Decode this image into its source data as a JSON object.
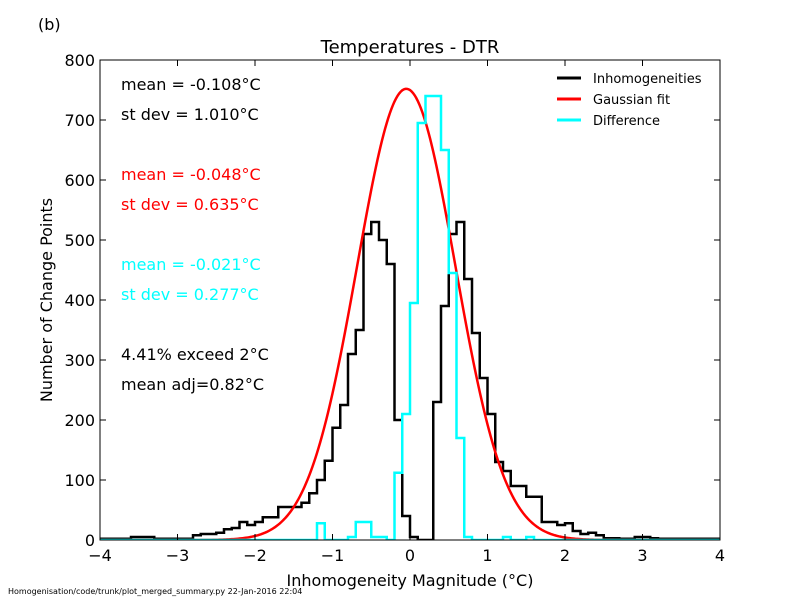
{
  "panel_label": "(b)",
  "footer": "Homogenisation/code/trunk/plot_merged_summary.py   22-Jan-2016 22:04",
  "annotations": [
    {
      "text": "mean = -0.108°C",
      "color": "#000000"
    },
    {
      "text": "st dev =  1.010°C",
      "color": "#000000"
    },
    {
      "text": "mean = -0.048°C",
      "color": "#ff0000"
    },
    {
      "text": "st dev =  0.635°C",
      "color": "#ff0000"
    },
    {
      "text": "mean = -0.021°C",
      "color": "#00ffff"
    },
    {
      "text": "st dev =  0.277°C",
      "color": "#00ffff"
    },
    {
      "text": "4.41% exceed 2°C",
      "color": "#000000"
    },
    {
      "text": "mean adj=0.82°C",
      "color": "#000000"
    }
  ],
  "chart_data": {
    "type": "line",
    "title": "Temperatures - DTR",
    "xlabel": "Inhomogeneity Magnitude (°C)",
    "ylabel": "Number of Change Points",
    "xlim": [
      -4,
      4
    ],
    "ylim": [
      0,
      800
    ],
    "xticks": [
      "−4",
      "−3",
      "−2",
      "−1",
      "0",
      "1",
      "2",
      "3",
      "4"
    ],
    "xtick_values": [
      -4,
      -3,
      -2,
      -1,
      0,
      1,
      2,
      3,
      4
    ],
    "yticks": [
      "0",
      "100",
      "200",
      "300",
      "400",
      "500",
      "600",
      "700",
      "800"
    ],
    "ytick_values": [
      0,
      100,
      200,
      300,
      400,
      500,
      600,
      700,
      800
    ],
    "grid": false,
    "legend_position": "top-right",
    "bin_edges_start": -4.0,
    "bin_width": 0.1,
    "series": [
      {
        "name": "Inhomogeneities",
        "kind": "step",
        "color": "#000000",
        "values": [
          2,
          2,
          2,
          2,
          5,
          5,
          5,
          2,
          2,
          2,
          2,
          2,
          8,
          10,
          10,
          12,
          18,
          20,
          30,
          25,
          30,
          38,
          38,
          55,
          55,
          55,
          62,
          78,
          100,
          132,
          187,
          225,
          310,
          350,
          510,
          530,
          500,
          460,
          200,
          40,
          5,
          0,
          0,
          230,
          390,
          510,
          530,
          435,
          345,
          270,
          210,
          130,
          115,
          90,
          90,
          72,
          72,
          30,
          30,
          25,
          28,
          15,
          10,
          12,
          8,
          3,
          3,
          2,
          2,
          5,
          5,
          3,
          2,
          2,
          2,
          2,
          2,
          2,
          2,
          2
        ]
      },
      {
        "name": "Gaussian fit",
        "kind": "line",
        "color": "#ff0000",
        "mean": -0.048,
        "stdev": 0.635,
        "peak": 752
      },
      {
        "name": "Difference",
        "kind": "step",
        "color": "#00ffff",
        "values": [
          0,
          0,
          0,
          0,
          0,
          0,
          0,
          0,
          0,
          0,
          0,
          0,
          0,
          0,
          0,
          0,
          0,
          0,
          0,
          0,
          0,
          0,
          0,
          0,
          0,
          0,
          0,
          0,
          28,
          0,
          0,
          0,
          5,
          30,
          30,
          5,
          5,
          0,
          112,
          210,
          395,
          695,
          740,
          740,
          650,
          445,
          170,
          5,
          0,
          0,
          0,
          0,
          5,
          0,
          0,
          5,
          0,
          0,
          0,
          0,
          0,
          0,
          0,
          0,
          0,
          0,
          0,
          0,
          0,
          0,
          0,
          0,
          0,
          0,
          0,
          0,
          0,
          0,
          0,
          0
        ]
      }
    ]
  }
}
